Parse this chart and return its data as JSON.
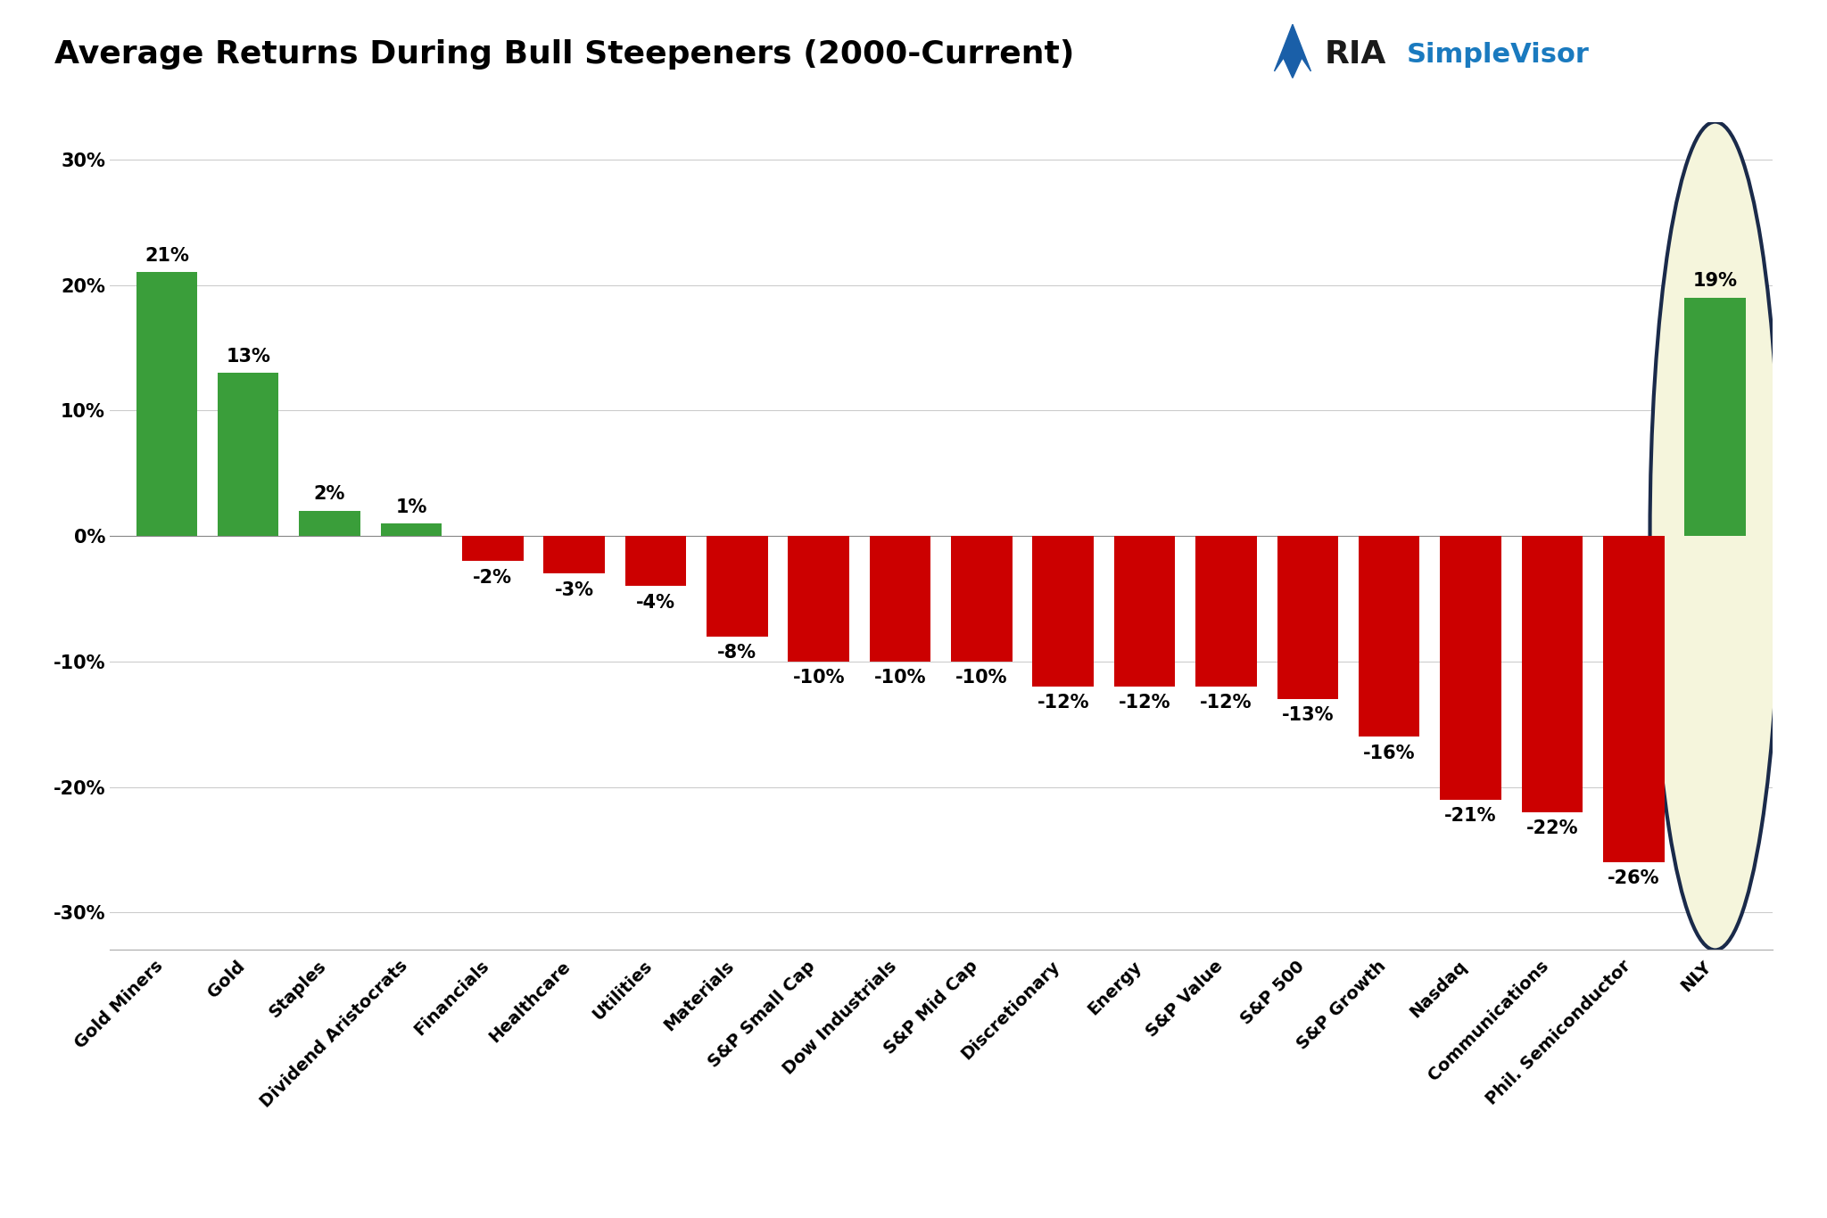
{
  "categories": [
    "Gold Miners",
    "Gold",
    "Staples",
    "Dividend Aristocrats",
    "Financials",
    "Healthcare",
    "Utilities",
    "Materials",
    "S&P Small Cap",
    "Dow Industrials",
    "S&P Mid Cap",
    "Discretionary",
    "Energy",
    "S&P Value",
    "S&P 500",
    "S&P Growth",
    "Nasdaq",
    "Communications",
    "Phil. Semiconductor",
    "NLY"
  ],
  "values": [
    21,
    13,
    2,
    1,
    -2,
    -3,
    -4,
    -8,
    -10,
    -10,
    -10,
    -12,
    -12,
    -12,
    -13,
    -16,
    -21,
    -22,
    -26,
    19
  ],
  "bar_colors": [
    "#3a9e3a",
    "#3a9e3a",
    "#3a9e3a",
    "#3a9e3a",
    "#cc0000",
    "#cc0000",
    "#cc0000",
    "#cc0000",
    "#cc0000",
    "#cc0000",
    "#cc0000",
    "#cc0000",
    "#cc0000",
    "#cc0000",
    "#cc0000",
    "#cc0000",
    "#cc0000",
    "#cc0000",
    "#cc0000",
    "#3a9e3a"
  ],
  "title": "Average Returns During Bull Steepeners (2000-Current)",
  "title_fontsize": 26,
  "tick_fontsize": 14,
  "value_fontsize": 15,
  "ylim_min": -33,
  "ylim_max": 33,
  "yticks": [
    -30,
    -20,
    -10,
    0,
    10,
    20,
    30
  ],
  "background_color": "#ffffff",
  "grid_color": "#cccccc",
  "oval_color": "#f5f5dc",
  "oval_edge_color": "#1a2a4a",
  "ria_text": "RIA",
  "simplevisor_text": "SimpleVisor",
  "ria_color": "#1a1a1a",
  "simplevisor_color": "#1a7abf",
  "bar_width": 0.75
}
